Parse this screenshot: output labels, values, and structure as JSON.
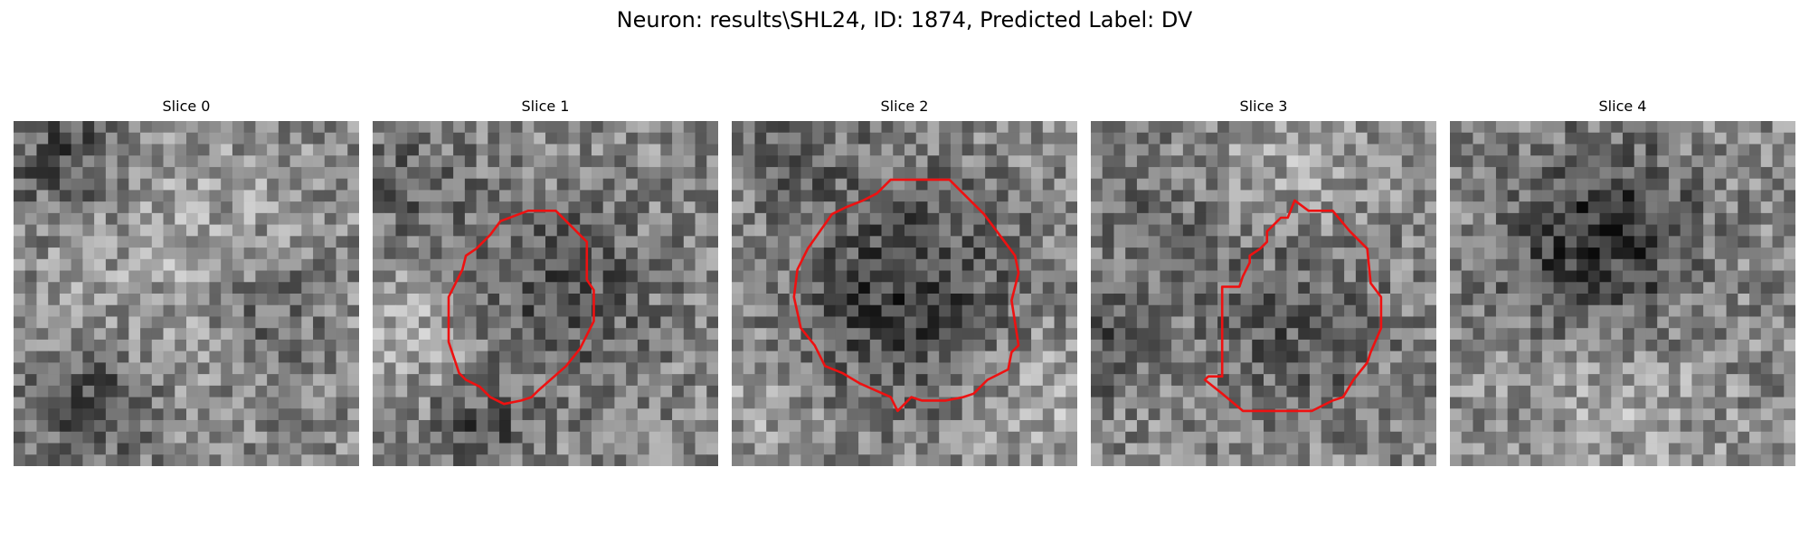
{
  "title": "Neuron: results\\SHL24, ID: 1874, Predicted Label: DV",
  "slices": [
    {
      "label": "Slice 0",
      "seed": 11,
      "blobs": [
        [
          0.15,
          0.1,
          0.12,
          -60
        ],
        [
          0.22,
          0.82,
          0.12,
          -70
        ],
        [
          0.72,
          0.55,
          0.12,
          -45
        ],
        [
          0.5,
          0.4,
          0.25,
          30
        ]
      ],
      "contour": []
    },
    {
      "label": "Slice 1",
      "seed": 23,
      "blobs": [
        [
          0.55,
          0.5,
          0.18,
          -55
        ],
        [
          0.12,
          0.2,
          0.12,
          -40
        ],
        [
          0.3,
          0.9,
          0.1,
          -55
        ],
        [
          0.1,
          0.6,
          0.15,
          35
        ]
      ],
      "contour": [
        [
          0.45,
          0.26
        ],
        [
          0.53,
          0.26
        ],
        [
          0.62,
          0.35
        ],
        [
          0.62,
          0.46
        ],
        [
          0.64,
          0.49
        ],
        [
          0.64,
          0.58
        ],
        [
          0.6,
          0.66
        ],
        [
          0.56,
          0.71
        ],
        [
          0.48,
          0.78
        ],
        [
          0.46,
          0.8
        ],
        [
          0.43,
          0.81
        ],
        [
          0.38,
          0.82
        ],
        [
          0.34,
          0.8
        ],
        [
          0.31,
          0.77
        ],
        [
          0.27,
          0.75
        ],
        [
          0.25,
          0.73
        ],
        [
          0.24,
          0.7
        ],
        [
          0.22,
          0.64
        ],
        [
          0.22,
          0.51
        ],
        [
          0.26,
          0.43
        ],
        [
          0.27,
          0.39
        ],
        [
          0.3,
          0.37
        ],
        [
          0.34,
          0.33
        ],
        [
          0.37,
          0.29
        ]
      ]
    },
    {
      "label": "Slice 2",
      "seed": 37,
      "blobs": [
        [
          0.5,
          0.5,
          0.22,
          -75
        ],
        [
          0.2,
          0.1,
          0.12,
          -30
        ],
        [
          0.9,
          0.8,
          0.15,
          35
        ],
        [
          0.1,
          0.85,
          0.12,
          30
        ]
      ],
      "contour": [
        [
          0.46,
          0.17
        ],
        [
          0.63,
          0.17
        ],
        [
          0.67,
          0.21
        ],
        [
          0.73,
          0.27
        ],
        [
          0.79,
          0.35
        ],
        [
          0.82,
          0.39
        ],
        [
          0.83,
          0.44
        ],
        [
          0.81,
          0.52
        ],
        [
          0.83,
          0.65
        ],
        [
          0.81,
          0.67
        ],
        [
          0.8,
          0.72
        ],
        [
          0.74,
          0.75
        ],
        [
          0.7,
          0.79
        ],
        [
          0.67,
          0.8
        ],
        [
          0.62,
          0.81
        ],
        [
          0.55,
          0.81
        ],
        [
          0.52,
          0.8
        ],
        [
          0.48,
          0.84
        ],
        [
          0.46,
          0.8
        ],
        [
          0.37,
          0.76
        ],
        [
          0.32,
          0.73
        ],
        [
          0.27,
          0.71
        ],
        [
          0.24,
          0.65
        ],
        [
          0.2,
          0.6
        ],
        [
          0.18,
          0.51
        ],
        [
          0.19,
          0.43
        ],
        [
          0.22,
          0.37
        ],
        [
          0.29,
          0.27
        ],
        [
          0.33,
          0.25
        ],
        [
          0.38,
          0.23
        ],
        [
          0.42,
          0.21
        ]
      ]
    },
    {
      "label": "Slice 3",
      "seed": 53,
      "blobs": [
        [
          0.6,
          0.6,
          0.18,
          -45
        ],
        [
          0.05,
          0.65,
          0.1,
          -55
        ],
        [
          0.2,
          0.3,
          0.15,
          -25
        ],
        [
          0.6,
          0.1,
          0.15,
          30
        ]
      ],
      "contour": [
        [
          0.59,
          0.23
        ],
        [
          0.63,
          0.26
        ],
        [
          0.7,
          0.26
        ],
        [
          0.75,
          0.32
        ],
        [
          0.8,
          0.37
        ],
        [
          0.81,
          0.47
        ],
        [
          0.84,
          0.51
        ],
        [
          0.84,
          0.6
        ],
        [
          0.81,
          0.67
        ],
        [
          0.8,
          0.7
        ],
        [
          0.76,
          0.75
        ],
        [
          0.73,
          0.8
        ],
        [
          0.7,
          0.81
        ],
        [
          0.64,
          0.84
        ],
        [
          0.63,
          0.84
        ],
        [
          0.44,
          0.84
        ],
        [
          0.38,
          0.79
        ],
        [
          0.33,
          0.75
        ],
        [
          0.34,
          0.74
        ],
        [
          0.38,
          0.74
        ],
        [
          0.38,
          0.48
        ],
        [
          0.43,
          0.48
        ],
        [
          0.44,
          0.45
        ],
        [
          0.46,
          0.41
        ],
        [
          0.46,
          0.39
        ],
        [
          0.49,
          0.37
        ],
        [
          0.51,
          0.35
        ],
        [
          0.51,
          0.32
        ],
        [
          0.53,
          0.3
        ],
        [
          0.55,
          0.28
        ],
        [
          0.57,
          0.28
        ]
      ]
    },
    {
      "label": "Slice 4",
      "seed": 71,
      "blobs": [
        [
          0.45,
          0.25,
          0.15,
          -65
        ],
        [
          0.25,
          0.45,
          0.12,
          -40
        ],
        [
          0.55,
          0.45,
          0.15,
          -40
        ],
        [
          0.5,
          0.85,
          0.2,
          30
        ]
      ],
      "contour": []
    }
  ],
  "colors": {
    "contour": "#ee1111",
    "background": "#ffffff"
  }
}
